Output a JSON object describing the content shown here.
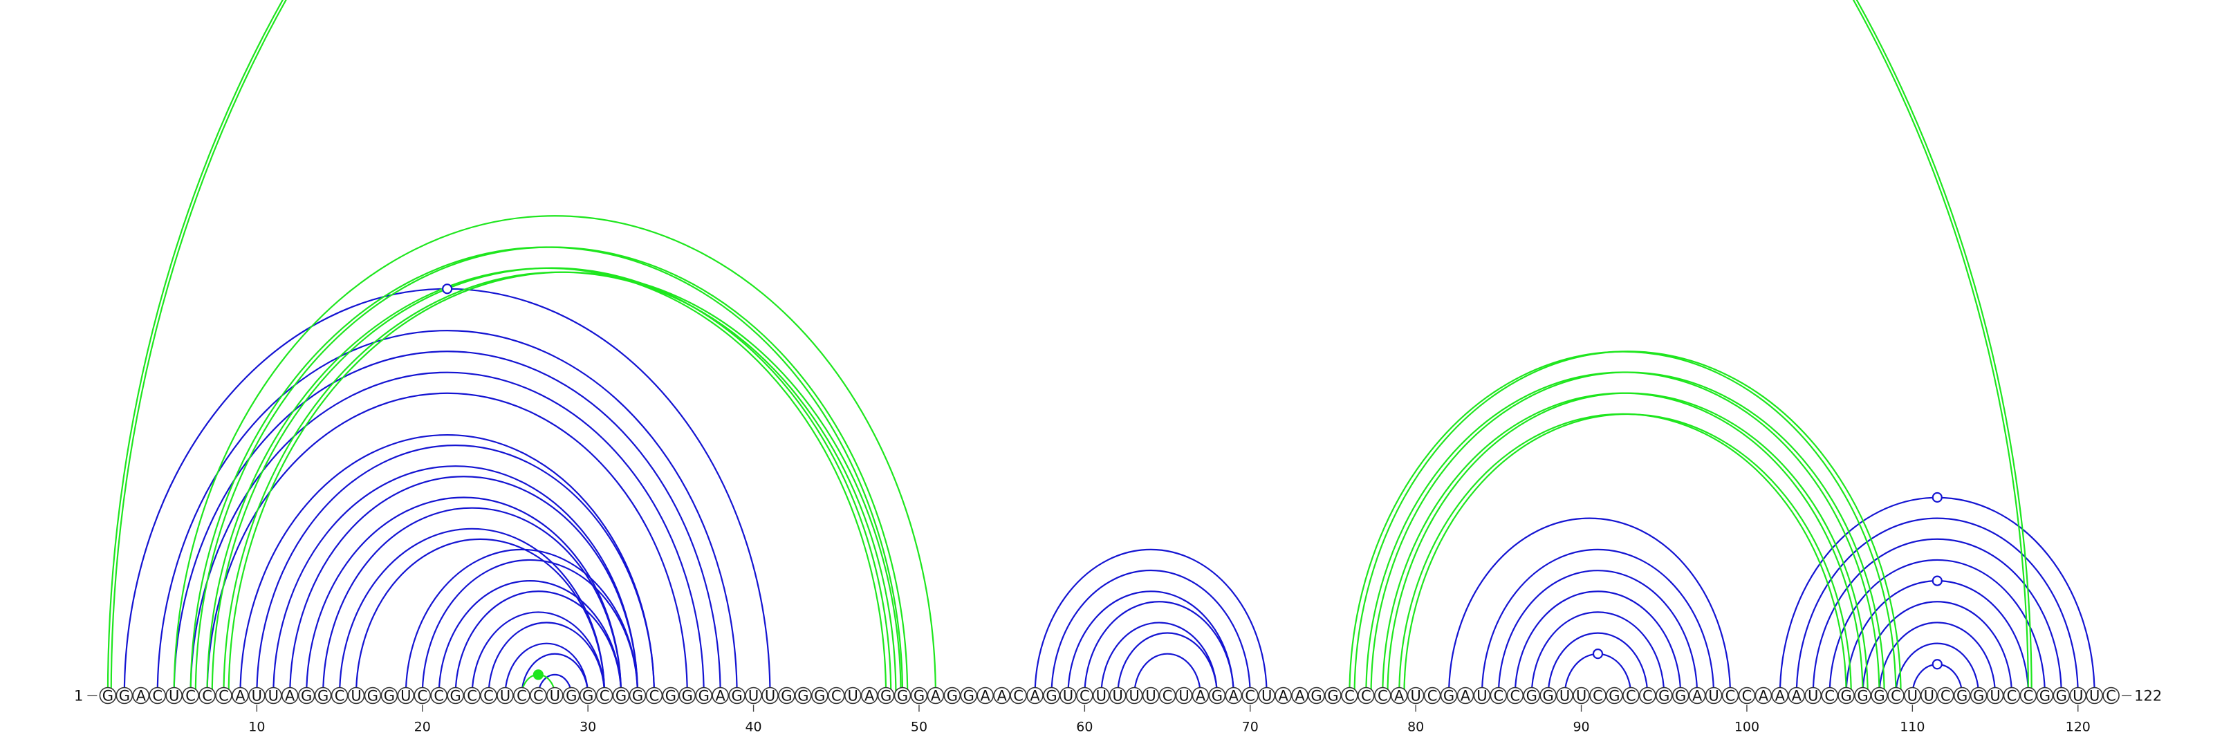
{
  "sequence": "GGACUCCCAUUAGGCUGGUCCGCCUCCUGGCGGCGGGAGUUGGGCUAGGGAGGAACAGUCUUUUCUAGACUAAGGCCCAUCGAUCCGGUUCGCCGGAUCCAAAUCGGGCUUCGGUCCGGUUC",
  "start_label": "1",
  "end_label": "122",
  "ticks": [
    "10",
    "20",
    "30",
    "40",
    "50",
    "60",
    "70",
    "80",
    "90",
    "100",
    "110",
    "120"
  ],
  "colors": {
    "blue": "#1414d2",
    "green": "#1ee61e"
  },
  "blue_arcs": [
    [
      2,
      41
    ],
    [
      4,
      39
    ],
    [
      5,
      38
    ],
    [
      6,
      37
    ],
    [
      7,
      36
    ],
    [
      9,
      34
    ],
    [
      10,
      34
    ],
    [
      11,
      33
    ],
    [
      12,
      33
    ],
    [
      13,
      32
    ],
    [
      14,
      32
    ],
    [
      15,
      31
    ],
    [
      16,
      31
    ],
    [
      19,
      33
    ],
    [
      20,
      33
    ],
    [
      21,
      32
    ],
    [
      22,
      32
    ],
    [
      23,
      31
    ],
    [
      24,
      31
    ],
    [
      25,
      30
    ],
    [
      26,
      30
    ],
    [
      27,
      29
    ],
    [
      57,
      71
    ],
    [
      58,
      70
    ],
    [
      59,
      69
    ],
    [
      60,
      69
    ],
    [
      61,
      68
    ],
    [
      62,
      68
    ],
    [
      63,
      67
    ],
    [
      82,
      99
    ],
    [
      84,
      98
    ],
    [
      85,
      97
    ],
    [
      86,
      96
    ],
    [
      87,
      95
    ],
    [
      88,
      94
    ],
    [
      89,
      93
    ],
    [
      102,
      121
    ],
    [
      103,
      120
    ],
    [
      104,
      119
    ],
    [
      105,
      118
    ],
    [
      106,
      117
    ],
    [
      107,
      116
    ],
    [
      108,
      115
    ],
    [
      109,
      114
    ],
    [
      110,
      113
    ]
  ],
  "blue_markers": [
    [
      21.5,
      "top"
    ],
    [
      91,
      "bottom"
    ],
    [
      111.5,
      "top"
    ],
    [
      111.5,
      "mid"
    ],
    [
      111.5,
      "bottom"
    ]
  ],
  "green_arcs": [
    [
      1,
      117
    ],
    [
      1.2,
      117.2
    ],
    [
      6,
      49
    ],
    [
      6.3,
      49.3
    ],
    [
      7,
      48
    ],
    [
      7.3,
      48.3
    ],
    [
      8,
      48.6
    ],
    [
      8.3,
      48.9
    ],
    [
      5,
      51
    ],
    [
      76,
      109
    ],
    [
      76.3,
      109.3
    ],
    [
      77,
      108
    ],
    [
      77.3,
      108.3
    ],
    [
      78,
      107
    ],
    [
      78.3,
      107.3
    ],
    [
      79,
      106
    ],
    [
      79.3,
      106.3
    ],
    [
      26,
      28
    ]
  ],
  "green_markers": [
    [
      27,
      "bottom"
    ]
  ]
}
